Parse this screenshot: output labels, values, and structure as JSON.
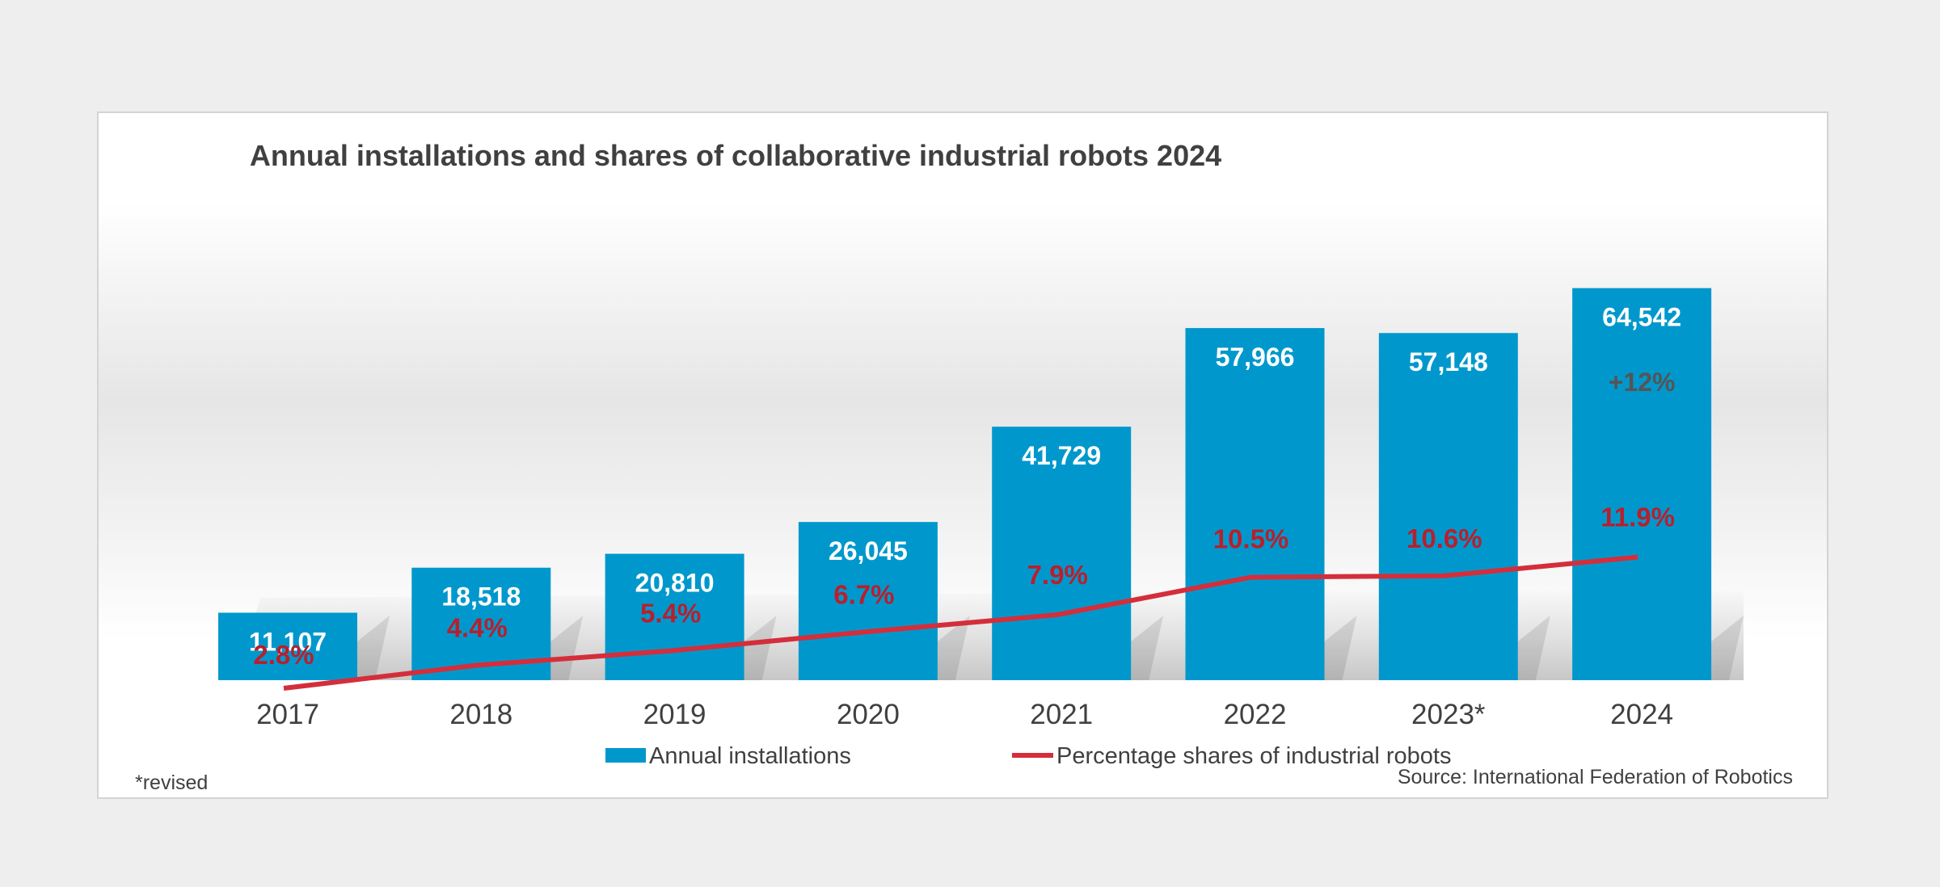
{
  "colors": {
    "bar": "#0098cc",
    "line": "#d42e3b",
    "line_label": "#b81f2d",
    "text": "#404040",
    "growth_label": "#555555"
  },
  "chart_data": {
    "type": "bar",
    "title": "Annual installations and shares of collaborative industrial robots 2024",
    "categories": [
      "2017",
      "2018",
      "2019",
      "2020",
      "2021",
      "2022",
      "2023*",
      "2024"
    ],
    "series": [
      {
        "name": "Annual installations",
        "type": "bar",
        "axis": "left",
        "values": [
          11107,
          18518,
          20810,
          26045,
          41729,
          57966,
          57148,
          64542
        ],
        "labels": [
          "11,107",
          "18,518",
          "20,810",
          "26,045",
          "41,729",
          "57,966",
          "57,148",
          "64,542"
        ]
      },
      {
        "name": "Percentage shares of industrial robots",
        "type": "line",
        "axis": "right",
        "values": [
          2.8,
          4.4,
          5.4,
          6.7,
          7.9,
          10.5,
          10.6,
          11.9
        ],
        "labels": [
          "2.8%",
          "4.4%",
          "5.4%",
          "6.7%",
          "7.9%",
          "10.5%",
          "10.6%",
          "11.9%"
        ]
      }
    ],
    "growth_label": "+12%",
    "ylim_bars": [
      0,
      72000
    ],
    "axes_visible": false,
    "grid": false,
    "legend_position": "bottom-center",
    "footnote": "*revised",
    "source": "Source: International Federation of Robotics"
  }
}
